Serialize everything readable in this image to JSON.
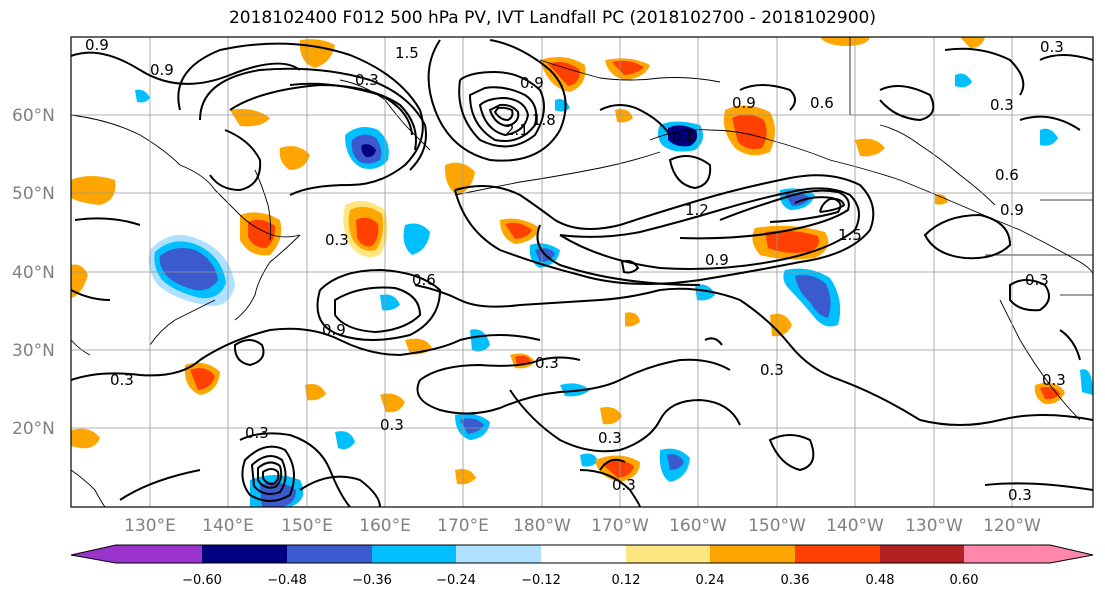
{
  "title": "2018102400 F012 500 hPa PV, IVT Landfall PC (2018102700 - 2018102900)",
  "lon_labels": [
    "130°E",
    "140°E",
    "150°E",
    "160°E",
    "170°E",
    "180°W",
    "170°W",
    "160°W",
    "150°W",
    "140°W",
    "130°W",
    "120°W"
  ],
  "lat_labels": [
    "60°N",
    "50°N",
    "40°N",
    "30°N",
    "20°N"
  ],
  "colorbar": {
    "tick_labels": [
      "−0.60",
      "−0.48",
      "−0.36",
      "−0.24",
      "−0.12",
      "0.12",
      "0.24",
      "0.36",
      "0.48",
      "0.60"
    ],
    "colors": [
      "#9933cc",
      "#000080",
      "#3a5acd",
      "#00bfff",
      "#b0e0ff",
      "#ffffff",
      "#ffe680",
      "#ffa500",
      "#ff4000",
      "#b22222",
      "#ff88aa"
    ]
  },
  "contour_labels": [
    "0.9",
    "0.9",
    "1.5",
    "0.3",
    "0.9",
    "2.1",
    "1.8",
    "0.6",
    "0.9",
    "0.6",
    "0.3",
    "0.6",
    "0.3",
    "0.9",
    "1.2",
    "1.5",
    "0.9",
    "0.3",
    "0.6",
    "0.9",
    "0.3",
    "0.3",
    "0.3",
    "0.3",
    "0.3",
    "0.3",
    "0.3",
    "0.3",
    "0.3",
    "0.3"
  ]
}
